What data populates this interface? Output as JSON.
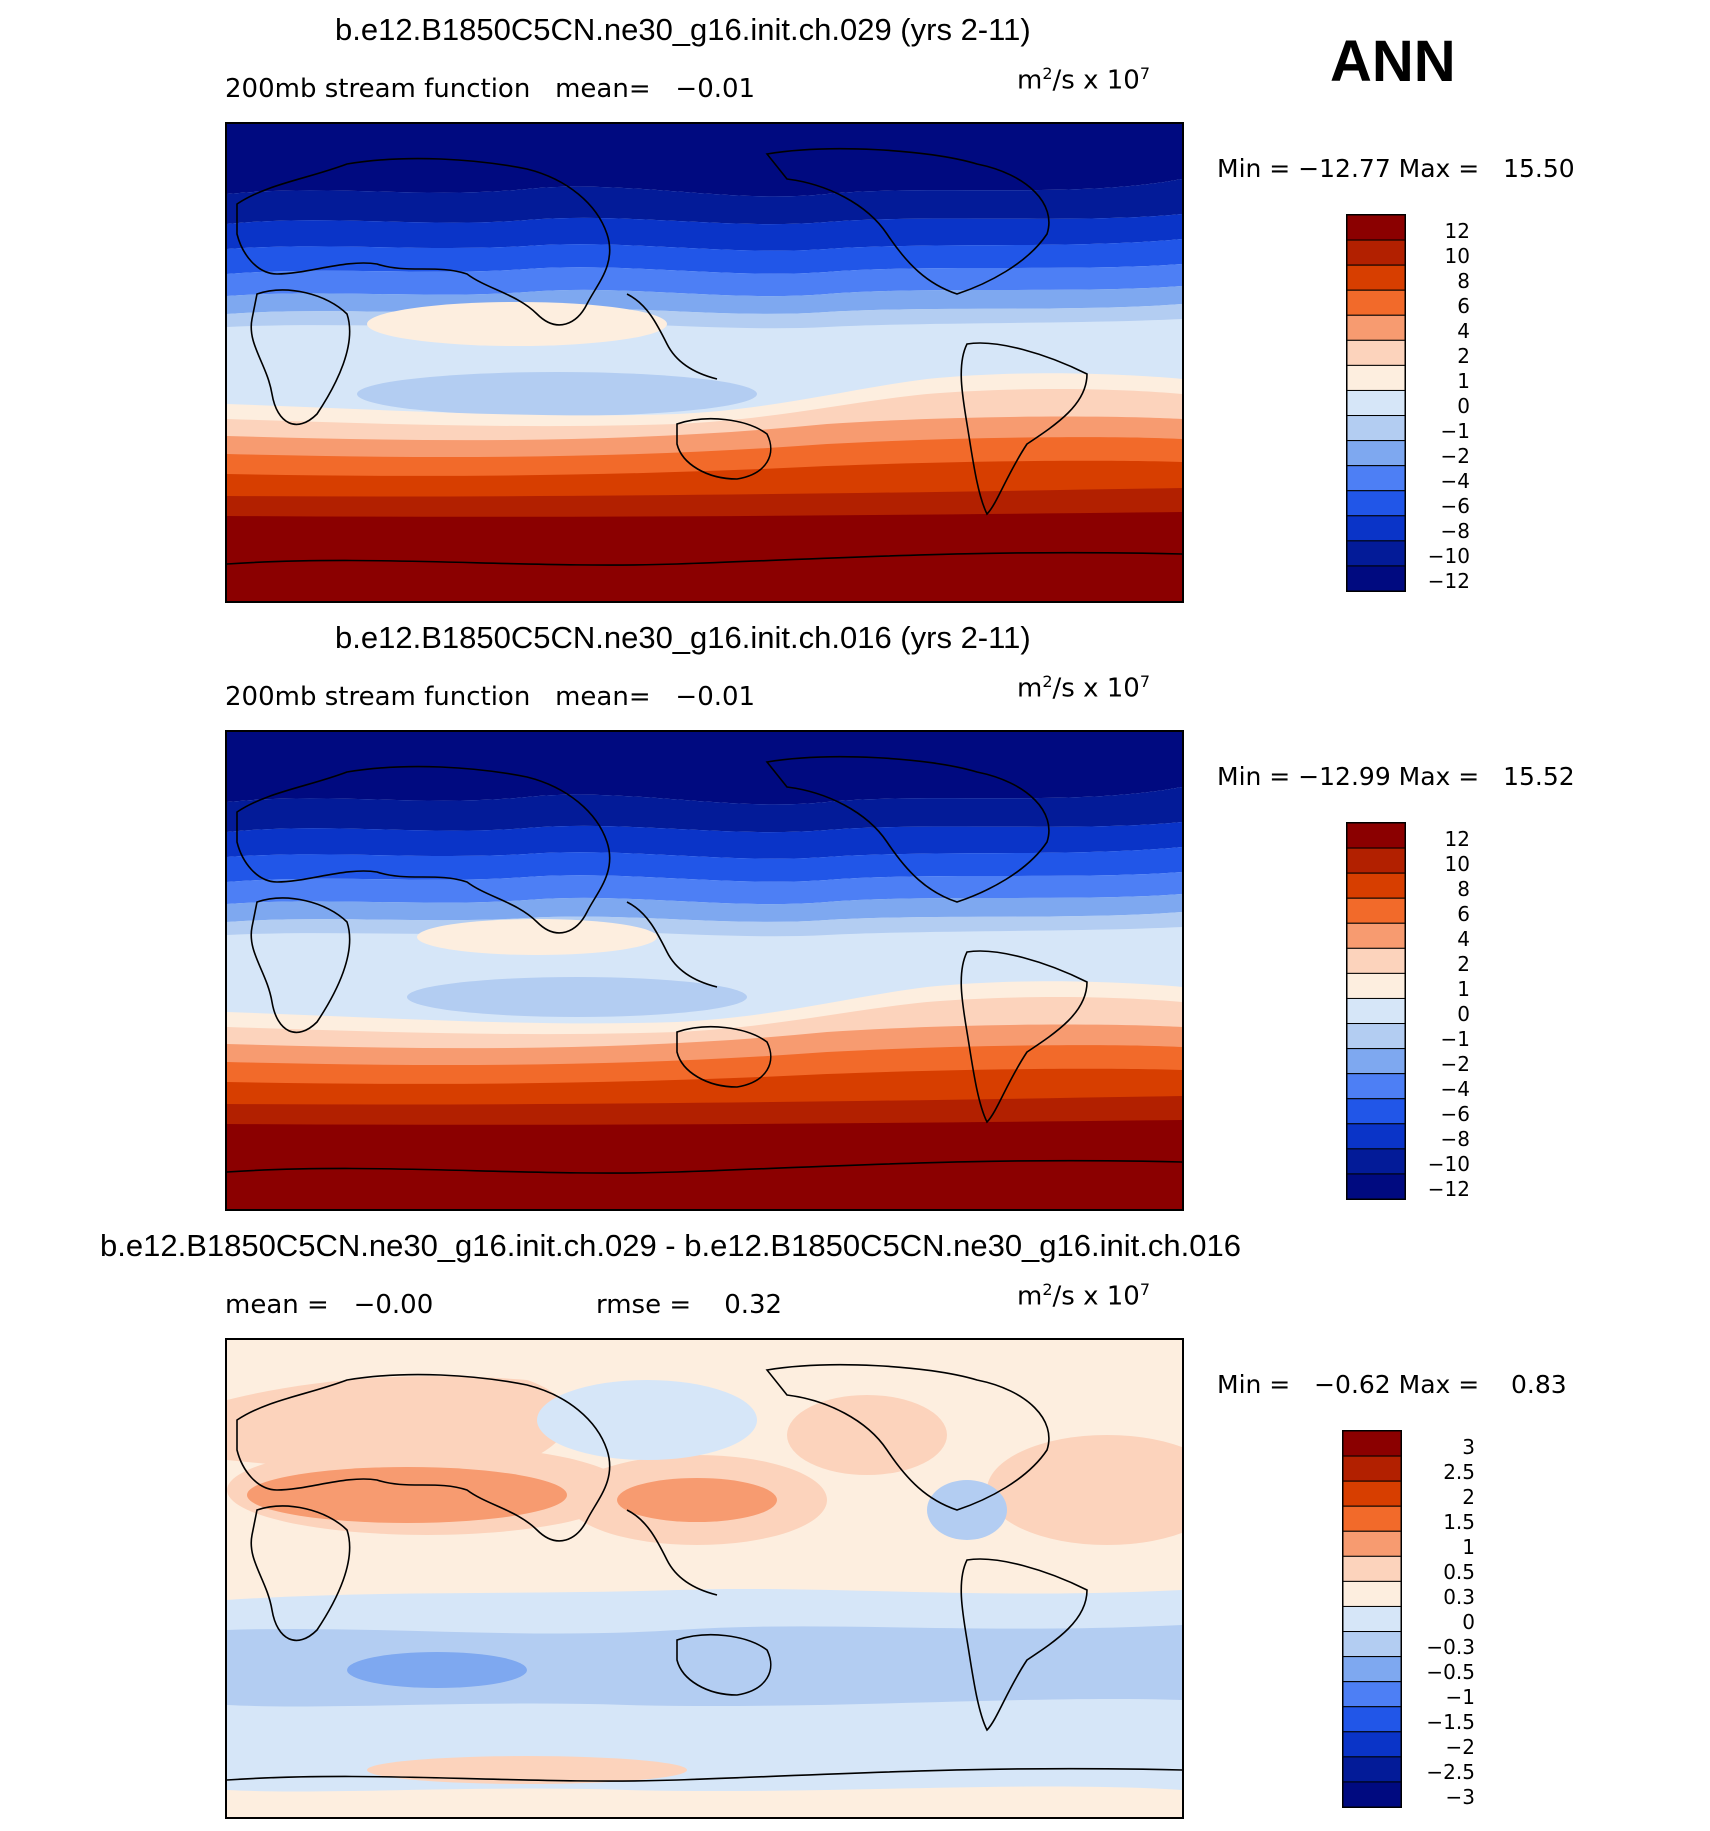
{
  "season": "ANN",
  "continent_color": "#000000",
  "panels": [
    {
      "title": "b.e12.B1850C5CN.ne30_g16.init.ch.029 (yrs 2-11)",
      "left_text": "200mb stream function   mean=   −0.01",
      "units_main": "m",
      "units_sup1": "2",
      "units_mid": "/s x 10",
      "units_sup2": "7",
      "minmax": "Min = −12.77 Max =   15.50",
      "colorbar": {
        "colors": [
          "#8b0000",
          "#b22000",
          "#d73e00",
          "#f26a2a",
          "#f79b70",
          "#fcd3bc",
          "#fdeedf",
          "#d6e6f8",
          "#b3cdf2",
          "#7ea8f0",
          "#4d7ff5",
          "#2156e8",
          "#0a34c8",
          "#031b98",
          "#000a80"
        ],
        "labels": [
          "12",
          "10",
          "8",
          "6",
          "4",
          "2",
          "1",
          "0",
          "−1",
          "−2",
          "−4",
          "−6",
          "−8",
          "−10",
          "−12"
        ]
      }
    },
    {
      "title": "b.e12.B1850C5CN.ne30_g16.init.ch.016 (yrs 2-11)",
      "left_text": "200mb stream function   mean=   −0.01",
      "units_main": "m",
      "units_sup1": "2",
      "units_mid": "/s x 10",
      "units_sup2": "7",
      "minmax": "Min = −12.99 Max =   15.52",
      "colorbar": {
        "colors": [
          "#8b0000",
          "#b22000",
          "#d73e00",
          "#f26a2a",
          "#f79b70",
          "#fcd3bc",
          "#fdeedf",
          "#d6e6f8",
          "#b3cdf2",
          "#7ea8f0",
          "#4d7ff5",
          "#2156e8",
          "#0a34c8",
          "#031b98",
          "#000a80"
        ],
        "labels": [
          "12",
          "10",
          "8",
          "6",
          "4",
          "2",
          "1",
          "0",
          "−1",
          "−2",
          "−4",
          "−6",
          "−8",
          "−10",
          "−12"
        ]
      }
    },
    {
      "title": "b.e12.B1850C5CN.ne30_g16.init.ch.029 - b.e12.B1850C5CN.ne30_g16.init.ch.016",
      "left_text": "mean =   −0.00",
      "rmse_text": "rmse =    0.32",
      "units_main": "m",
      "units_sup1": "2",
      "units_mid": "/s x 10",
      "units_sup2": "7",
      "minmax": "Min =   −0.62 Max =    0.83",
      "colorbar": {
        "colors": [
          "#8b0000",
          "#b22000",
          "#d73e00",
          "#f26a2a",
          "#f79b70",
          "#fcd3bc",
          "#fdeedf",
          "#d6e6f8",
          "#b3cdf2",
          "#7ea8f0",
          "#4d7ff5",
          "#2156e8",
          "#0a34c8",
          "#031b98",
          "#000a80"
        ],
        "labels": [
          "3",
          "2.5",
          "2",
          "1.5",
          "1",
          "0.5",
          "0.3",
          "0",
          "−0.3",
          "−0.5",
          "−1",
          "−1.5",
          "−2",
          "−2.5",
          "−3"
        ]
      }
    }
  ],
  "chart_data": [
    {
      "type": "heatmap",
      "title": "b.e12.B1850C5CN.ne30_g16.init.ch.029 (yrs 2-11)",
      "variable": "200mb stream function",
      "mean": -0.01,
      "min": -12.77,
      "max": 15.5,
      "units": "m^2/s x 10^7",
      "levels": [
        -12,
        -10,
        -8,
        -6,
        -4,
        -2,
        -1,
        0,
        1,
        2,
        4,
        6,
        8,
        10,
        12
      ],
      "lat": [
        90,
        75,
        60,
        45,
        30,
        15,
        0,
        -15,
        -30,
        -45,
        -60,
        -75,
        -90
      ],
      "zonal_profile": [
        -13,
        -11,
        -8,
        -5,
        -2,
        -0.5,
        -1,
        0,
        2,
        6,
        11,
        14,
        15
      ]
    },
    {
      "type": "heatmap",
      "title": "b.e12.B1850C5CN.ne30_g16.init.ch.016 (yrs 2-11)",
      "variable": "200mb stream function",
      "mean": -0.01,
      "min": -12.99,
      "max": 15.52,
      "units": "m^2/s x 10^7",
      "levels": [
        -12,
        -10,
        -8,
        -6,
        -4,
        -2,
        -1,
        0,
        1,
        2,
        4,
        6,
        8,
        10,
        12
      ],
      "lat": [
        90,
        75,
        60,
        45,
        30,
        15,
        0,
        -15,
        -30,
        -45,
        -60,
        -75,
        -90
      ],
      "zonal_profile": [
        -13,
        -11,
        -8,
        -5,
        -2,
        -0.5,
        -1,
        0,
        2,
        6,
        11,
        14,
        15
      ]
    },
    {
      "type": "heatmap",
      "title": "b.e12.B1850C5CN.ne30_g16.init.ch.029 - b.e12.B1850C5CN.ne30_g16.init.ch.016",
      "mean": -0.0,
      "rmse": 0.32,
      "min": -0.62,
      "max": 0.83,
      "units": "m^2/s x 10^7",
      "levels": [
        -3,
        -2.5,
        -2,
        -1.5,
        -1,
        -0.5,
        -0.3,
        0,
        0.3,
        0.5,
        1,
        1.5,
        2,
        2.5,
        3
      ]
    }
  ]
}
